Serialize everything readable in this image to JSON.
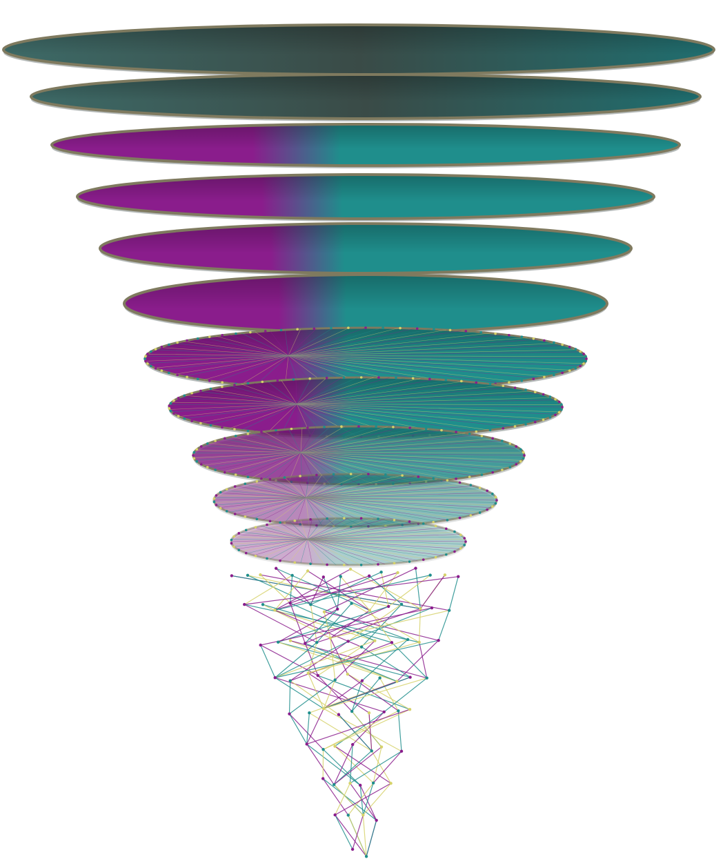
{
  "figure": {
    "description_visible_text": [],
    "colors": {
      "teal": "#1f8e8c",
      "teal_dark": "#155f63",
      "magenta": "#8a1d8c",
      "yellow": "#d6d26a",
      "rim": "#7f7a5f",
      "background": "#ffffff"
    },
    "levels": 20
  }
}
